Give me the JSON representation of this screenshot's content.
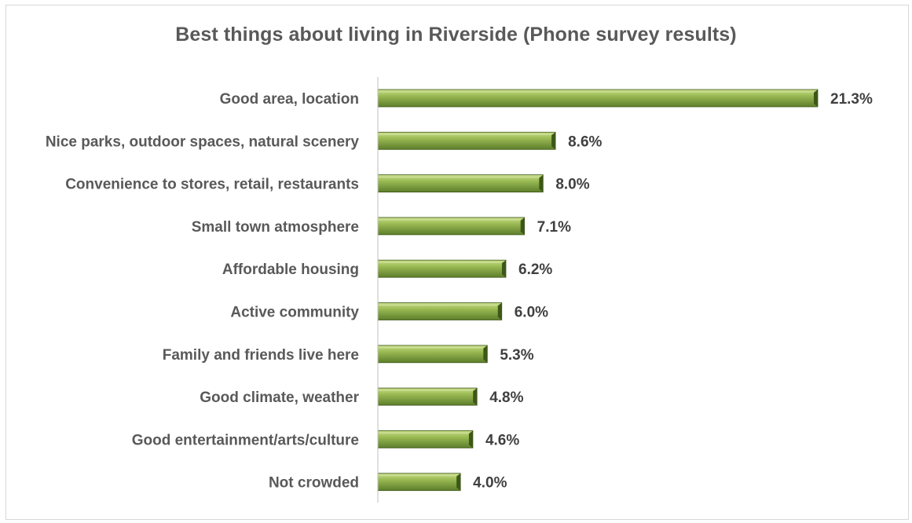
{
  "chart_data": {
    "type": "bar",
    "orientation": "horizontal",
    "title": "Best things about living in Riverside (Phone survey results)",
    "categories": [
      "Good area, location",
      "Nice parks, outdoor spaces, natural scenery",
      "Convenience to stores, retail, restaurants",
      "Small town atmosphere",
      "Affordable housing",
      "Active community",
      "Family and friends live here",
      "Good climate, weather",
      "Good entertainment/arts/culture",
      "Not crowded"
    ],
    "values": [
      21.3,
      8.6,
      8.0,
      7.1,
      6.2,
      6.0,
      5.3,
      4.8,
      4.6,
      4.0
    ],
    "value_labels": [
      "21.3%",
      "8.6%",
      "8.0%",
      "7.1%",
      "6.2%",
      "6.0%",
      "5.3%",
      "4.8%",
      "4.6%",
      "4.0%"
    ],
    "unit": "%",
    "xlabel": "",
    "ylabel": "",
    "xlim": [
      0,
      21.3
    ],
    "grid": false,
    "legend": "none",
    "colors": {
      "bar_light": "#b2cc6e",
      "bar_mid": "#8aab4a",
      "bar_dark": "#5a7a28",
      "bar_edge": "#3f5a1a",
      "axis": "#bfbfbf",
      "text": "#595959"
    }
  }
}
